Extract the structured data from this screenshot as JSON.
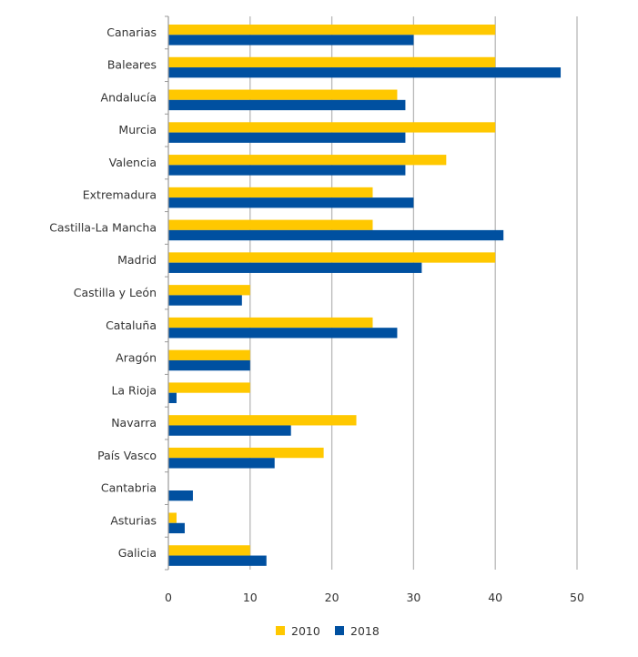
{
  "chart_data": {
    "type": "bar",
    "orientation": "horizontal",
    "categories": [
      "Canarias",
      "Baleares",
      "Andalucía",
      "Murcia",
      "Valencia",
      "Extremadura",
      "Castilla-La Mancha",
      "Madrid",
      "Castilla y León",
      "Cataluña",
      "Aragón",
      "La Rioja",
      "Navarra",
      "País Vasco",
      "Cantabria",
      "Asturias",
      "Galicia"
    ],
    "series": [
      {
        "name": "2010",
        "color": "#FFC800",
        "values": [
          40,
          40,
          28,
          40,
          34,
          25,
          25,
          40,
          10,
          25,
          10,
          10,
          23,
          19,
          0,
          1,
          10
        ]
      },
      {
        "name": "2018",
        "color": "#0050A0",
        "values": [
          30,
          48,
          29,
          29,
          29,
          30,
          41,
          31,
          9,
          28,
          10,
          1,
          15,
          13,
          3,
          2,
          12
        ]
      }
    ],
    "xlim": [
      0,
      50
    ],
    "xticks": [
      0,
      10,
      20,
      30,
      40,
      50
    ],
    "xlabel": "",
    "ylabel": "",
    "title": "",
    "grid": "vertical",
    "legend": "bottom"
  }
}
